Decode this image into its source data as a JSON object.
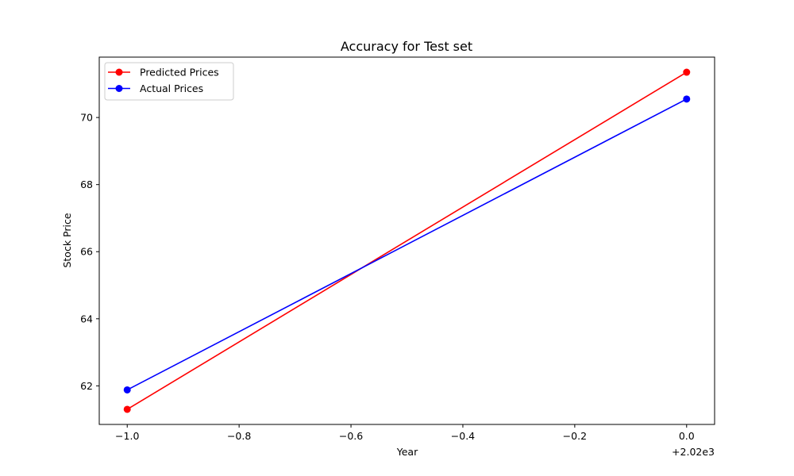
{
  "chart_data": {
    "type": "line",
    "title": "Accuracy for Test set",
    "xlabel": "Year",
    "ylabel": "Stock Price",
    "x_offset_label": "+2.02e3",
    "x": [
      2019,
      2020
    ],
    "xlim": [
      2018.95,
      2020.05
    ],
    "ylim": [
      60.85,
      71.8
    ],
    "x_ticks": [
      -1.0,
      -0.8,
      -0.6,
      -0.4,
      -0.2,
      0.0
    ],
    "x_tick_labels": [
      "−1.0",
      "−0.8",
      "−0.6",
      "−0.4",
      "−0.2",
      "0.0"
    ],
    "y_ticks": [
      62,
      64,
      66,
      68,
      70
    ],
    "y_tick_labels": [
      "62",
      "64",
      "66",
      "68",
      "70"
    ],
    "grid": false,
    "legend_position": "top-left",
    "series": [
      {
        "name": "Predicted Prices",
        "color": "#ff0000",
        "values": [
          61.3,
          71.35
        ]
      },
      {
        "name": "Actual Prices",
        "color": "#0000ff",
        "values": [
          61.88,
          70.55
        ]
      }
    ]
  }
}
